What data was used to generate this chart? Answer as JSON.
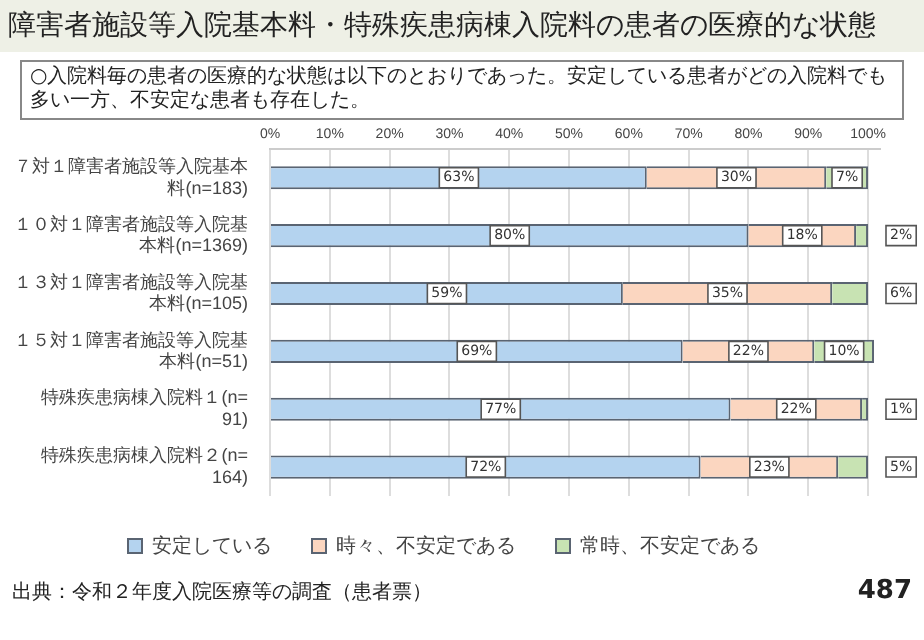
{
  "chart_data": {
    "type": "bar",
    "orientation": "horizontal",
    "stacked": true,
    "title": "障害者施設等入院基本料・特殊疾患病棟入院料の患者の医療的な状態",
    "subtitle": "○入院料毎の患者の医療的な状態は以下のとおりであった。安定している患者がどの入院料でも多い一方、不安定な患者も存在した。",
    "categories": [
      "７対１障害者施設等入院基本料(n=183)",
      "１０対１障害者施設等入院基本料(n=1369)",
      "１３対１障害者施設等入院基本料(n=105)",
      "１５対１障害者施設等入院基本料(n=51)",
      "特殊疾患病棟入院料１(n=91)",
      "特殊疾患病棟入院料２(n=164)"
    ],
    "series": [
      {
        "name": "安定している",
        "color": "#b4d3ef",
        "values": [
          63,
          80,
          59,
          69,
          77,
          72
        ],
        "value_labels": [
          "63%",
          "80%",
          "59%",
          "69%",
          "77%",
          "72%"
        ]
      },
      {
        "name": "時々、不安定である",
        "color": "#fbd6c0",
        "values": [
          30,
          18,
          35,
          22,
          22,
          23
        ],
        "value_labels": [
          "30%",
          "18%",
          "35%",
          "22%",
          "22%",
          "23%"
        ]
      },
      {
        "name": "常時、不安定である",
        "color": "#c8e3b3",
        "values": [
          7,
          2,
          6,
          10,
          1,
          5
        ],
        "value_labels": [
          "7%",
          "2%",
          "6%",
          "10%",
          "1%",
          "5%"
        ]
      }
    ],
    "xlim": [
      0,
      102
    ],
    "xticks": [
      {
        "value": 0,
        "label": "0%"
      },
      {
        "value": 10,
        "label": "10%"
      },
      {
        "value": 20,
        "label": "20%"
      },
      {
        "value": 30,
        "label": "30%"
      },
      {
        "value": 40,
        "label": "40%"
      },
      {
        "value": 50,
        "label": "50%"
      },
      {
        "value": 60,
        "label": "60%"
      },
      {
        "value": 70,
        "label": "70%"
      },
      {
        "value": 80,
        "label": "80%"
      },
      {
        "value": 90,
        "label": "90%"
      },
      {
        "value": 100,
        "label": "100%"
      }
    ],
    "grid": "x",
    "legend": "bottom",
    "annotations": [
      "出典：令和２年度入院医療等の調査（患者票）",
      "487"
    ]
  }
}
